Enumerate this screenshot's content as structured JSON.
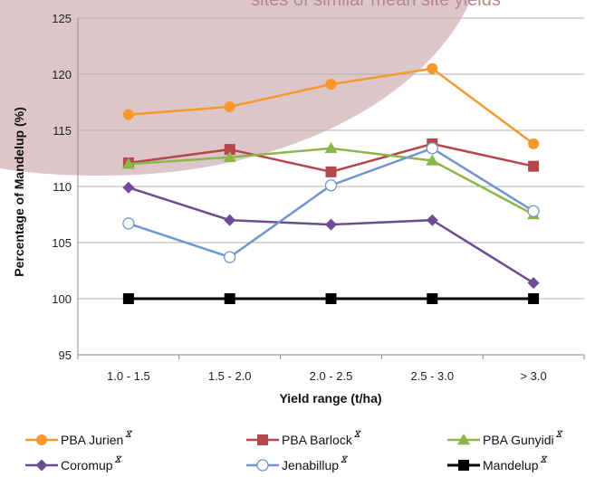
{
  "chart_data": {
    "type": "line",
    "title": "sites of similar mean site yields",
    "xlabel": "Yield range (t/ha)",
    "ylabel": "Percentage of Mandelup (%)",
    "categories": [
      "1.0 - 1.5",
      "1.5 - 2.0",
      "2.0 - 2.5",
      "2.5 - 3.0",
      "> 3.0"
    ],
    "ylim": [
      95,
      125
    ],
    "yticks": [
      95,
      100,
      105,
      110,
      115,
      120,
      125
    ],
    "grid": "horizontal",
    "legend_position": "bottom",
    "series": [
      {
        "name": "PBA Jurien",
        "superscript": "ⴵ",
        "color": "#f7982d",
        "marker": "circle-filled",
        "values": [
          116.4,
          117.1,
          119.1,
          120.5,
          113.8
        ]
      },
      {
        "name": "PBA Barlock",
        "superscript": "ⴵ",
        "color": "#b5474b",
        "marker": "square-filled",
        "values": [
          112.1,
          113.3,
          111.3,
          113.8,
          111.8
        ]
      },
      {
        "name": "PBA Gunyidi",
        "superscript": "ⴵ",
        "color": "#8db64a",
        "marker": "triangle-filled",
        "values": [
          112.0,
          112.6,
          113.4,
          112.3,
          107.5
        ]
      },
      {
        "name": "Coromup",
        "superscript": "ⴵ",
        "color": "#6e4c92",
        "marker": "diamond-filled",
        "values": [
          109.9,
          107.0,
          106.6,
          107.0,
          101.4
        ]
      },
      {
        "name": "Jenabillup",
        "superscript": "ⴵ",
        "color": "#6f96cf",
        "marker": "circle-open",
        "values": [
          106.7,
          103.7,
          110.1,
          113.4,
          107.8
        ]
      },
      {
        "name": "Mandelup",
        "superscript": "ⴵ",
        "color": "#000000",
        "marker": "square-filled",
        "values": [
          100,
          100,
          100,
          100,
          100
        ]
      }
    ]
  },
  "colors": {
    "background_shape": "#dcc6c9",
    "grid": "#b0b0b0",
    "axis": "#888888"
  }
}
